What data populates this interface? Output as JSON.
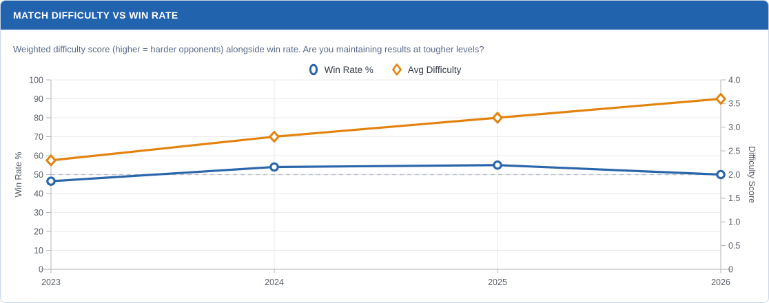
{
  "header": {
    "title": "MATCH DIFFICULTY VS WIN RATE"
  },
  "subtitle": "Weighted difficulty score (higher = harder opponents) alongside win rate. Are you maintaining results at tougher levels?",
  "colors": {
    "header_bg": "#2263ae",
    "header_text": "#ffffff",
    "win_rate": "#2b66ab",
    "difficulty": "#e2830f",
    "grid": "#e9e9e9",
    "axis": "#b3b3b3",
    "reference": "#b9c0ca",
    "tick_text": "#5a6068",
    "axis_title_text": "#5a6068",
    "legend_text": "#333a45",
    "subtitle_text": "#5a6a87",
    "card_border": "#c9d5e6"
  },
  "chart_data": {
    "type": "line",
    "x": [
      "2023",
      "2024",
      "2025",
      "2026"
    ],
    "series": [
      {
        "name": "Win Rate %",
        "axis": "left",
        "marker": "circle",
        "color": "#2b66ab",
        "values": [
          46.5,
          54,
          55,
          50
        ]
      },
      {
        "name": "Avg Difficulty",
        "axis": "right",
        "marker": "diamond",
        "color": "#e2830f",
        "values": [
          2.3,
          2.8,
          3.2,
          3.6
        ]
      }
    ],
    "left_axis": {
      "label": "Win Rate %",
      "min": 0,
      "max": 100,
      "step": 10
    },
    "right_axis": {
      "label": "Difficulty Score",
      "min": 0,
      "max": 4,
      "step": 0.5
    },
    "reference_line": {
      "axis": "left",
      "value": 50,
      "style": "dashed"
    },
    "grid": true,
    "legend_position": "top"
  }
}
